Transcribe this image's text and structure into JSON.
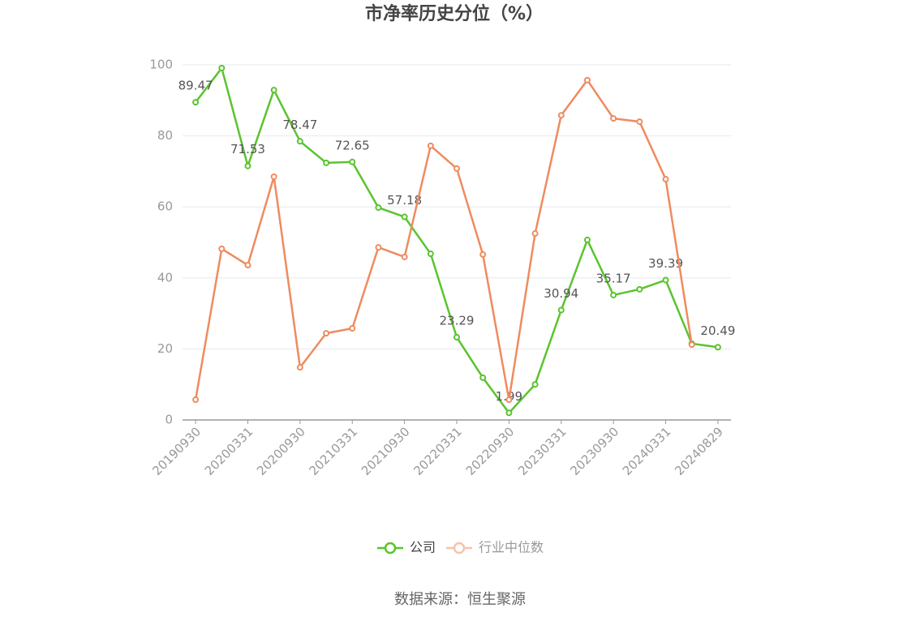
{
  "chart_data": {
    "type": "line",
    "title": "市净率历史分位（%）",
    "categories": [
      "20190930",
      null,
      "20200331",
      null,
      "20200930",
      null,
      "20210331",
      null,
      "20210930",
      null,
      "20220331",
      null,
      "20220930",
      null,
      "20230331",
      null,
      "20230930",
      null,
      "20240331",
      null,
      "20240829"
    ],
    "series": [
      {
        "name": "公司",
        "color": "#5ac42e",
        "values": [
          89.47,
          99.1,
          71.53,
          92.9,
          78.47,
          72.4,
          72.65,
          59.8,
          57.18,
          46.8,
          23.29,
          11.9,
          1.99,
          10.0,
          30.94,
          50.7,
          35.17,
          36.8,
          39.39,
          21.5,
          20.49
        ]
      },
      {
        "name": "行业中位数",
        "color": "#ef8b5f",
        "values": [
          5.7,
          48.2,
          43.6,
          68.5,
          14.8,
          24.4,
          25.8,
          48.6,
          45.9,
          77.2,
          70.8,
          46.6,
          5.7,
          52.5,
          85.8,
          95.7,
          84.9,
          84.0,
          67.8,
          21.2,
          null
        ]
      }
    ],
    "ylim": [
      0,
      100
    ],
    "yticks": [
      0,
      20,
      40,
      60,
      80,
      100
    ],
    "grid": true,
    "source": "数据来源：恒生聚源"
  }
}
